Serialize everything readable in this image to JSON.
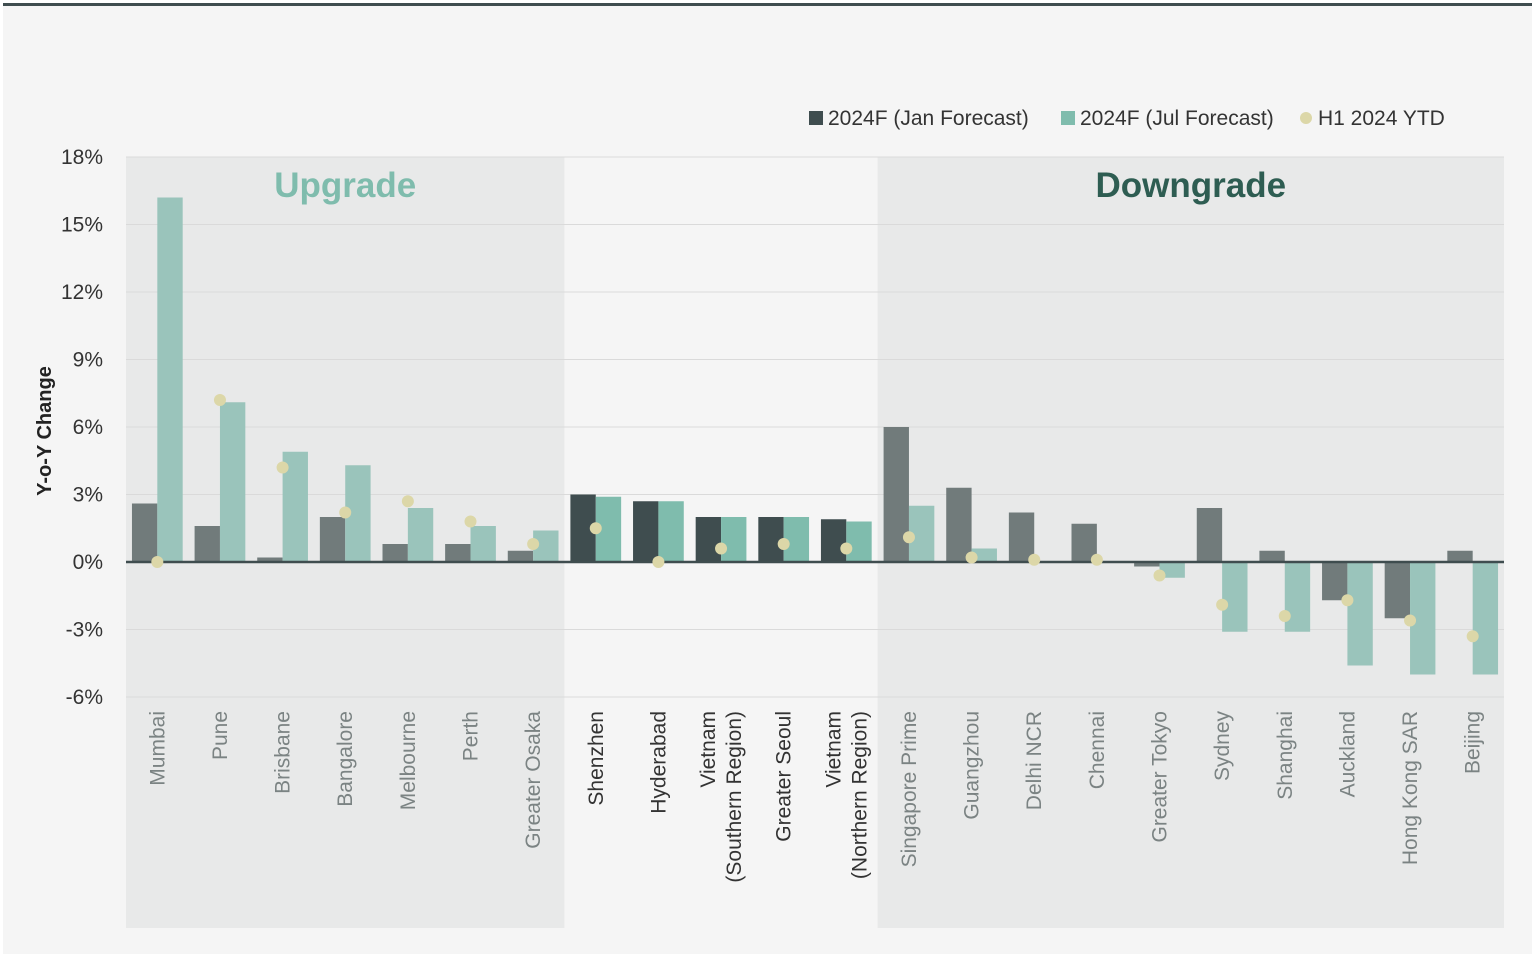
{
  "chart_data": {
    "type": "bar",
    "ylabel": "Y-o-Y Change",
    "ylim": [
      -6,
      18
    ],
    "yticks": [
      18,
      15,
      12,
      9,
      6,
      3,
      0,
      -3,
      -6
    ],
    "ytick_suffix": "%",
    "grid": true,
    "legend_position": "top-right",
    "zones": [
      {
        "name": "Upgrade",
        "from": 0,
        "to": 6,
        "color": "#7fbcad",
        "shaded": true
      },
      {
        "name": "",
        "from": 7,
        "to": 11,
        "shaded": false
      },
      {
        "name": "Downgrade",
        "from": 12,
        "to": 21,
        "color": "#2e5d52",
        "shaded": true
      }
    ],
    "categories": [
      "Mumbai",
      "Pune",
      "Brisbane",
      "Bangalore",
      "Melbourne",
      "Perth",
      "Greater Osaka",
      "Shenzhen",
      "Hyderabad",
      "Vietnam\n(Southern Region)",
      "Greater Seoul",
      "Vietnam\n(Northern Region)",
      "Singapore Prime",
      "Guangzhou",
      "Delhi NCR",
      "Chennai",
      "Greater Tokyo",
      "Sydney",
      "Shanghai",
      "Auckland",
      "Hong Kong SAR",
      "Beijing"
    ],
    "series": [
      {
        "name": "2024F (Jan Forecast)",
        "kind": "bar",
        "color": "#3f4d4f",
        "values": [
          2.6,
          1.6,
          0.2,
          2.0,
          0.8,
          0.8,
          0.5,
          3.0,
          2.7,
          2.0,
          2.0,
          1.9,
          6.0,
          3.3,
          2.2,
          1.7,
          -0.2,
          2.4,
          0.5,
          -1.7,
          -2.5,
          0.5
        ]
      },
      {
        "name": "2024F (Jul Forecast)",
        "kind": "bar",
        "color": "#7fbcad",
        "values": [
          16.2,
          7.1,
          4.9,
          4.3,
          2.4,
          1.6,
          1.4,
          2.9,
          2.7,
          2.0,
          2.0,
          1.8,
          2.5,
          0.6,
          0.0,
          0.0,
          -0.7,
          -3.1,
          -3.1,
          -4.6,
          -5.0,
          -5.0
        ]
      },
      {
        "name": "H1 2024 YTD",
        "kind": "dot",
        "color": "#dcd7a8",
        "values": [
          0.0,
          7.2,
          4.2,
          2.2,
          2.7,
          1.8,
          0.8,
          1.5,
          0.0,
          0.6,
          0.8,
          0.6,
          1.1,
          0.2,
          0.1,
          0.1,
          -0.6,
          -1.9,
          -2.4,
          -1.7,
          -2.6,
          -3.3
        ]
      }
    ]
  }
}
